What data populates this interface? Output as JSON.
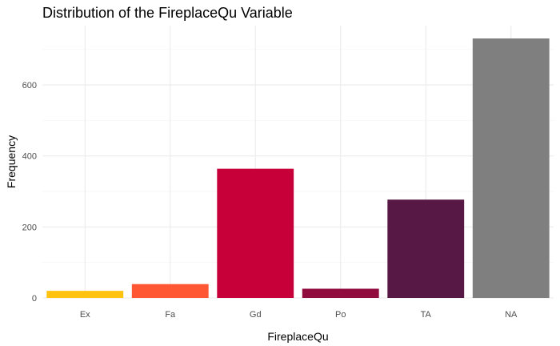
{
  "chart_data": {
    "type": "bar",
    "title": "Distribution of the FireplaceQu Variable",
    "xlabel": "FireplaceQu",
    "ylabel": "Frequency",
    "categories": [
      "Ex",
      "Fa",
      "Gd",
      "Po",
      "TA",
      "NA"
    ],
    "values": [
      20,
      39,
      364,
      26,
      277,
      731
    ],
    "colors": [
      "#FFC20E",
      "#FF5733",
      "#C70039",
      "#900C3F",
      "#581845",
      "#7F7F7F"
    ],
    "yticks": [
      0,
      200,
      400,
      600
    ],
    "ylim": [
      0,
      731
    ],
    "grid": true,
    "legend": "none"
  }
}
